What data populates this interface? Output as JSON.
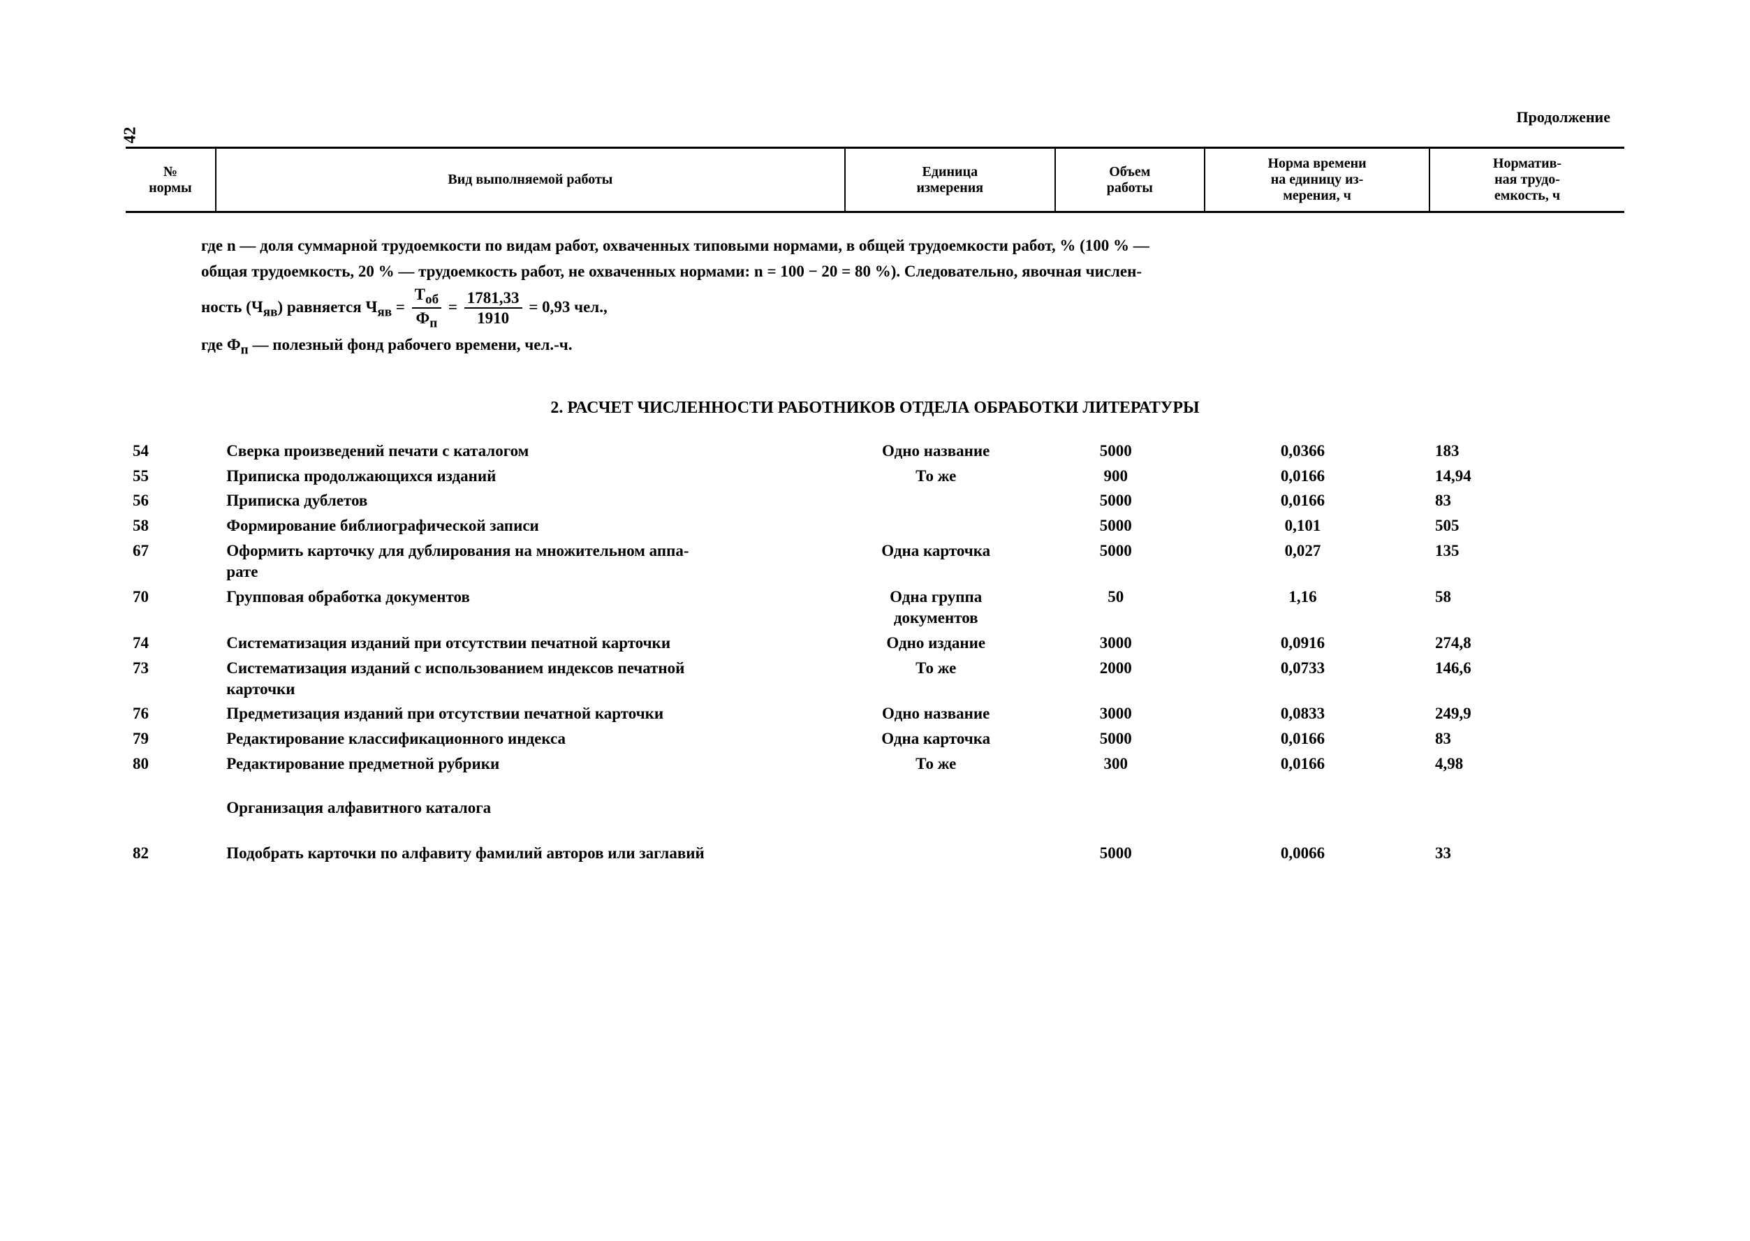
{
  "page_number": "42",
  "continuation_label": "Продолжение",
  "header": {
    "col1": "№\nнормы",
    "col2": "Вид выполняемой работы",
    "col3": "Единица\nизмерения",
    "col4": "Объем\nработы",
    "col5": "Норма времени\nна единицу из-\nмерения, ч",
    "col6": "Норматив-\nная трудо-\nемкость, ч"
  },
  "note": {
    "line1": "где n — доля суммарной трудоемкости по видам работ, охваченных типовыми нормами, в общей трудоемкости работ, % (100 % —",
    "line2": "общая трудоемкость, 20 % — трудоемкость работ, не охваченных нормами: n = 100 − 20 = 80 %). Следовательно, явочная числен-",
    "line3_prefix": "ность (Ч",
    "line3_sub1": "яв",
    "line3_mid1": ") равняется Ч",
    "line3_sub2": "яв",
    "eq": " = ",
    "frac1_num": "Т",
    "frac1_num_sub": "об",
    "frac1_den": "Ф",
    "frac1_den_sub": "п",
    "eq2": " = ",
    "frac2_num": "1781,33",
    "frac2_den": "1910",
    "eq3": " = ",
    "result": "0,93 чел.,",
    "line4_prefix": "где Ф",
    "line4_sub": "п",
    "line4_rest": " — полезный фонд рабочего времени, чел.-ч."
  },
  "section_title": "2. РАСЧЕТ ЧИСЛЕННОСТИ РАБОТНИКОВ ОТДЕЛА ОБРАБОТКИ ЛИТЕРАТУРЫ",
  "rows": [
    {
      "n": "54",
      "work": "Сверка произведений печати с каталогом",
      "unit": "Одно название",
      "vol": "5000",
      "time": "0,0366",
      "lab": "183"
    },
    {
      "n": "55",
      "work": "Приписка продолжающихся изданий",
      "unit": "То же",
      "vol": "900",
      "time": "0,0166",
      "lab": "14,94"
    },
    {
      "n": "56",
      "work": "Приписка дублетов",
      "unit": "",
      "vol": "5000",
      "time": "0,0166",
      "lab": "83"
    },
    {
      "n": "58",
      "work": "Формирование библиографической записи",
      "unit": "",
      "vol": "5000",
      "time": "0,101",
      "lab": "505"
    },
    {
      "n": "67",
      "work": "Оформить карточку для дублирования на множительном аппа-\nрате",
      "unit": "Одна карточка",
      "vol": "5000",
      "time": "0,027",
      "lab": "135"
    },
    {
      "n": "70",
      "work": "Групповая обработка документов",
      "unit": "Одна группа\nдокументов",
      "vol": "50",
      "time": "1,16",
      "lab": "58"
    },
    {
      "n": "74",
      "work": "Систематизация изданий при отсутствии печатной карточки",
      "unit": "Одно издание",
      "vol": "3000",
      "time": "0,0916",
      "lab": "274,8"
    },
    {
      "n": "73",
      "work": "Систематизация изданий с использованием индексов печатной\nкарточки",
      "unit": "То же",
      "vol": "2000",
      "time": "0,0733",
      "lab": "146,6"
    },
    {
      "n": "76",
      "work": "Предметизация изданий при отсутствии печатной карточки",
      "unit": "Одно название",
      "vol": "3000",
      "time": "0,0833",
      "lab": "249,9"
    },
    {
      "n": "79",
      "work": "Редактирование классификационного индекса",
      "unit": "Одна карточка",
      "vol": "5000",
      "time": "0,0166",
      "lab": "83"
    },
    {
      "n": "80",
      "work": "Редактирование предметной рубрики",
      "unit": "То же",
      "vol": "300",
      "time": "0,0166",
      "lab": "4,98"
    }
  ],
  "subheading": "Организация алфавитного каталога",
  "rows2": [
    {
      "n": "82",
      "work": "Подобрать карточки по алфавиту фамилий авторов или заглавий",
      "unit": "",
      "vol": "5000",
      "time": "0,0066",
      "lab": "33"
    }
  ]
}
